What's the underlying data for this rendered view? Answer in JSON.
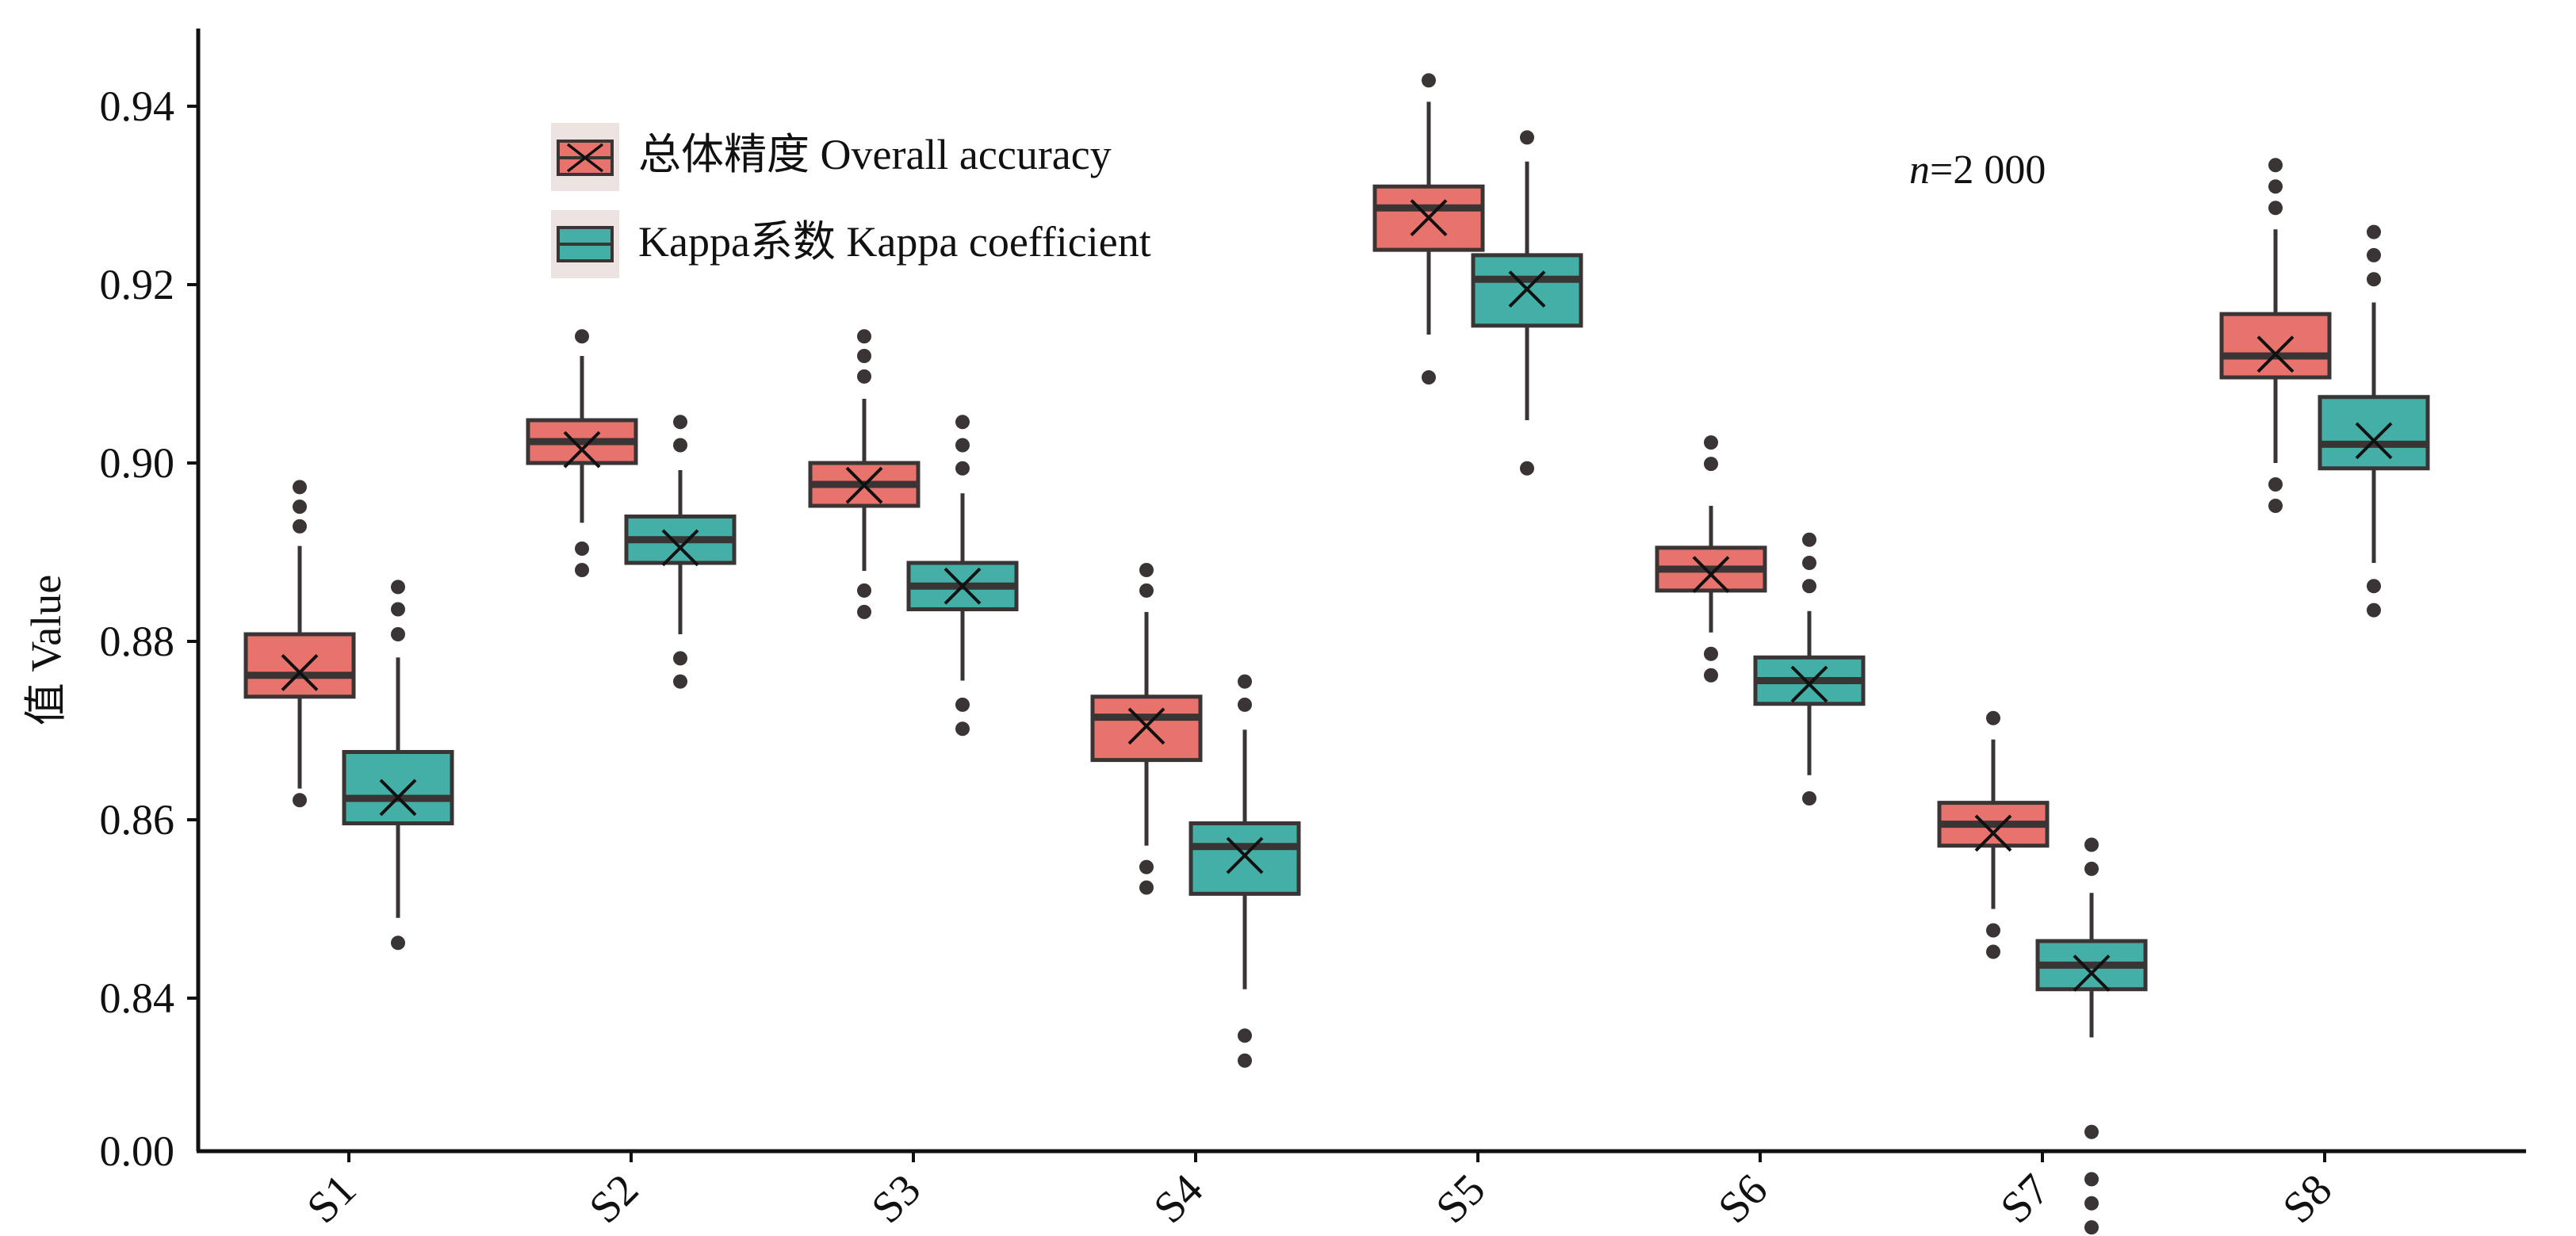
{
  "chart_data": {
    "type": "box",
    "xlabel": "",
    "ylabel": "值 Value",
    "annotation": {
      "italic": "n",
      "text": "=2 000"
    },
    "y_tick_labels": [
      "0.00",
      "0.84",
      "0.86",
      "0.88",
      "0.90",
      "0.92",
      "0.94"
    ],
    "ylim_displayed": [
      0.829,
      0.9445
    ],
    "axis_break": "bottom tick labelled 0.00 sits directly below 0.84 (axis truncated)",
    "categories": [
      "S1",
      "S2",
      "S3",
      "S4",
      "S5",
      "S6",
      "S7",
      "S8"
    ],
    "colors": {
      "overall": "#E8736C",
      "kappa": "#43AFA6",
      "stroke": "#3A3534"
    },
    "series": [
      {
        "name": "总体精度 Overall accuracy",
        "key": "overall",
        "boxes": [
          {
            "category": "S1",
            "whisker_low": 0.8635,
            "q1": 0.8738,
            "median": 0.8762,
            "q3": 0.8808,
            "whisker_high": 0.8907,
            "mean": 0.8765,
            "outliers": [
              0.8622,
              0.8929,
              0.8951,
              0.8973
            ]
          },
          {
            "category": "S2",
            "whisker_low": 0.8933,
            "q1": 0.9,
            "median": 0.9024,
            "q3": 0.9048,
            "whisker_high": 0.912,
            "mean": 0.9015,
            "outliers": [
              0.888,
              0.8904,
              0.9142
            ]
          },
          {
            "category": "S3",
            "whisker_low": 0.8879,
            "q1": 0.8952,
            "median": 0.8976,
            "q3": 0.9,
            "whisker_high": 0.9072,
            "mean": 0.8975,
            "outliers": [
              0.8833,
              0.8857,
              0.9097,
              0.912,
              0.9142
            ]
          },
          {
            "category": "S4",
            "whisker_low": 0.8571,
            "q1": 0.8667,
            "median": 0.8715,
            "q3": 0.8738,
            "whisker_high": 0.8833,
            "mean": 0.8705,
            "outliers": [
              0.8524,
              0.8547,
              0.8857,
              0.888
            ]
          },
          {
            "category": "S5",
            "whisker_low": 0.9144,
            "q1": 0.9239,
            "median": 0.9286,
            "q3": 0.931,
            "whisker_high": 0.9405,
            "mean": 0.9275,
            "outliers": [
              0.9096,
              0.9429
            ]
          },
          {
            "category": "S6",
            "whisker_low": 0.881,
            "q1": 0.8857,
            "median": 0.8881,
            "q3": 0.8905,
            "whisker_high": 0.8952,
            "mean": 0.8875,
            "outliers": [
              0.8762,
              0.8786,
              0.8999,
              0.9023
            ]
          },
          {
            "category": "S7",
            "whisker_low": 0.85,
            "q1": 0.8571,
            "median": 0.8595,
            "q3": 0.8619,
            "whisker_high": 0.869,
            "mean": 0.8585,
            "outliers": [
              0.8452,
              0.8476,
              0.8714
            ]
          },
          {
            "category": "S8",
            "whisker_low": 0.9,
            "q1": 0.9096,
            "median": 0.912,
            "q3": 0.9167,
            "whisker_high": 0.9262,
            "mean": 0.9122,
            "outliers": [
              0.8952,
              0.8976,
              0.9286,
              0.931,
              0.9334
            ]
          }
        ]
      },
      {
        "name": "Kappa系数 Kappa coefficient",
        "key": "kappa",
        "boxes": [
          {
            "category": "S1",
            "whisker_low": 0.849,
            "q1": 0.8596,
            "median": 0.8624,
            "q3": 0.8676,
            "whisker_high": 0.8782,
            "mean": 0.8625,
            "outliers": [
              0.8462,
              0.8808,
              0.8836,
              0.8861
            ]
          },
          {
            "category": "S2",
            "whisker_low": 0.8808,
            "q1": 0.8888,
            "median": 0.8914,
            "q3": 0.894,
            "whisker_high": 0.8992,
            "mean": 0.8905,
            "outliers": [
              0.8755,
              0.8781,
              0.902,
              0.9046
            ]
          },
          {
            "category": "S3",
            "whisker_low": 0.8756,
            "q1": 0.8836,
            "median": 0.8862,
            "q3": 0.8888,
            "whisker_high": 0.8966,
            "mean": 0.8862,
            "outliers": [
              0.8702,
              0.8729,
              0.8994,
              0.902,
              0.9046
            ]
          },
          {
            "category": "S4",
            "whisker_low": 0.841,
            "q1": 0.8517,
            "median": 0.857,
            "q3": 0.8596,
            "whisker_high": 0.8701,
            "mean": 0.856,
            "outliers": [
              0.833,
              0.8358,
              0.8729,
              0.8755
            ]
          },
          {
            "category": "S5",
            "whisker_low": 0.9048,
            "q1": 0.9154,
            "median": 0.9206,
            "q3": 0.9233,
            "whisker_high": 0.9338,
            "mean": 0.9195,
            "outliers": [
              0.8994,
              0.9365
            ]
          },
          {
            "category": "S6",
            "whisker_low": 0.865,
            "q1": 0.873,
            "median": 0.8756,
            "q3": 0.8782,
            "whisker_high": 0.8834,
            "mean": 0.8752,
            "outliers": [
              0.8624,
              0.8862,
              0.8888,
              0.8914
            ]
          },
          {
            "category": "S7",
            "whisker_low": 0.8356,
            "q1": 0.841,
            "median": 0.8437,
            "q3": 0.8464,
            "whisker_high": 0.8518,
            "mean": 0.8428,
            "outliers": [
              0.8143,
              0.817,
              0.8197,
              0.825,
              0.8545,
              0.8572
            ]
          },
          {
            "category": "S8",
            "whisker_low": 0.8888,
            "q1": 0.8994,
            "median": 0.9021,
            "q3": 0.9074,
            "whisker_high": 0.918,
            "mean": 0.9025,
            "outliers": [
              0.8835,
              0.8862,
              0.9206,
              0.9233,
              0.9259
            ]
          }
        ]
      }
    ],
    "legend": [
      {
        "label": "总体精度 Overall accuracy",
        "key": "overall"
      },
      {
        "label": "Kappa系数 Kappa coefficient",
        "key": "kappa"
      }
    ]
  }
}
